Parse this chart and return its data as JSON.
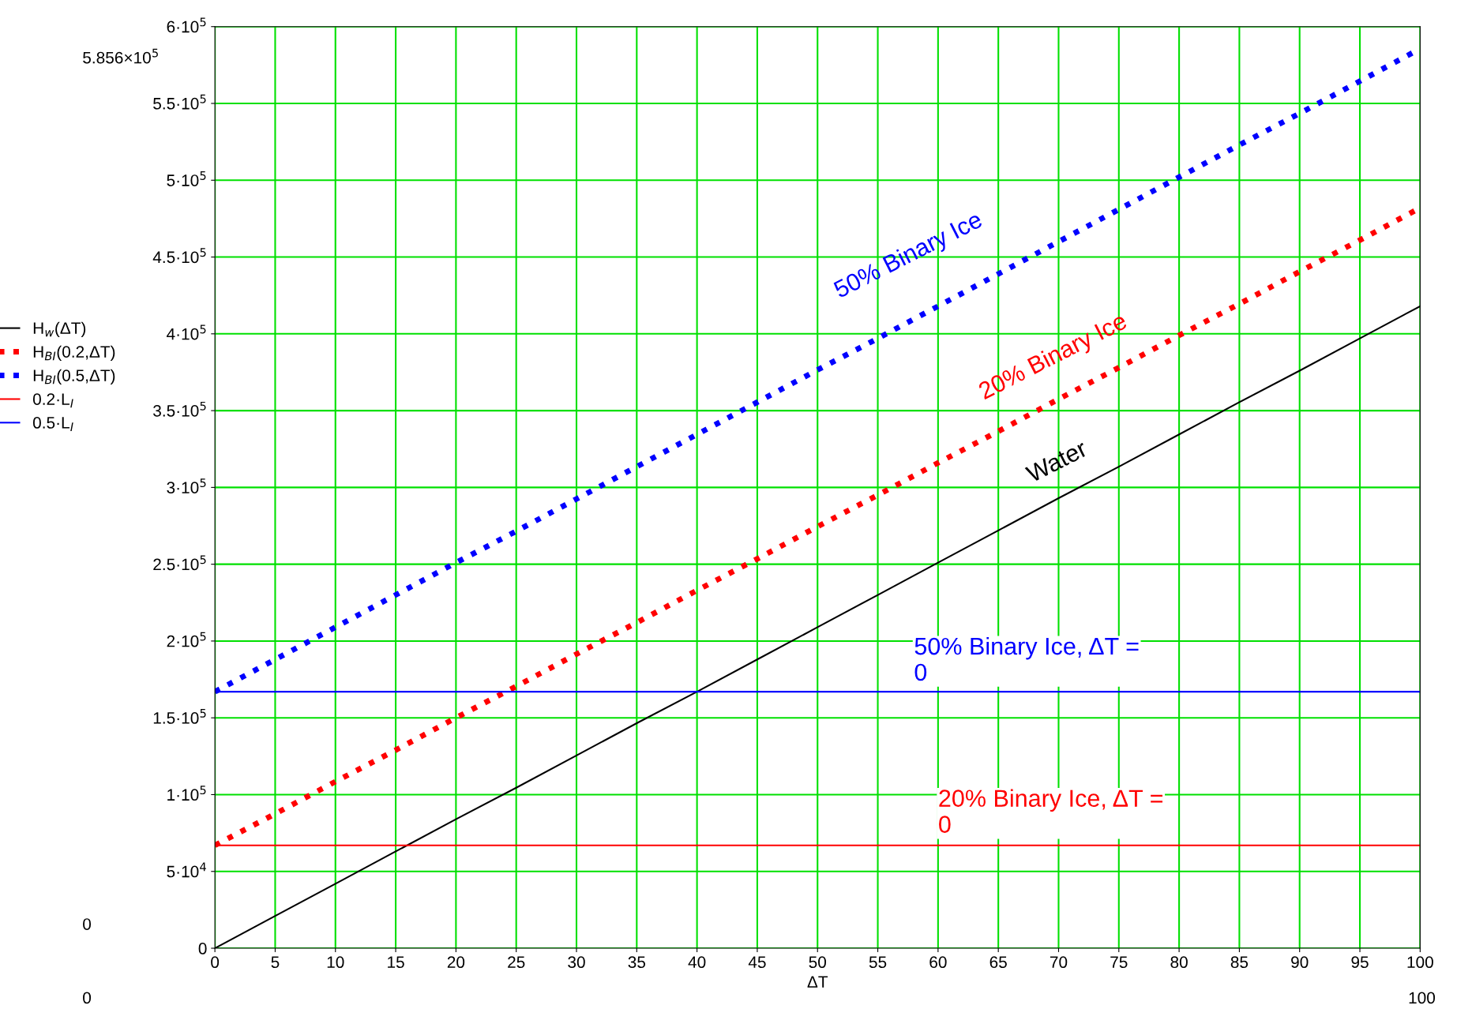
{
  "chart_data": {
    "type": "line",
    "xlabel": "ΔT",
    "xlim": [
      0,
      100
    ],
    "xticks": [
      0,
      5,
      10,
      15,
      20,
      25,
      30,
      35,
      40,
      45,
      50,
      55,
      60,
      65,
      70,
      75,
      80,
      85,
      90,
      95,
      100
    ],
    "ylim": [
      0,
      600000
    ],
    "yticks": [
      0,
      {
        "value": 50000,
        "label": "5·10$^{4}$"
      },
      {
        "value": 100000,
        "label": "1·10$^{5}$"
      },
      {
        "value": 150000,
        "label": "1.5·10$^{5}$"
      },
      {
        "value": 200000,
        "label": "2·10$^{5}$"
      },
      {
        "value": 250000,
        "label": "2.5·10$^{5}$"
      },
      {
        "value": 300000,
        "label": "3·10$^{5}$"
      },
      {
        "value": 350000,
        "label": "3.5·10$^{5}$"
      },
      {
        "value": 400000,
        "label": "4·10$^{5}$"
      },
      {
        "value": 450000,
        "label": "4.5·10$^{5}$"
      },
      {
        "value": 500000,
        "label": "5·10$^{5}$"
      },
      {
        "value": 550000,
        "label": "5.5·10$^{5}$"
      },
      {
        "value": 600000,
        "label": "6·10$^{5}$"
      }
    ],
    "grid": true,
    "legend": "left",
    "x": [
      0,
      5,
      10,
      15,
      20,
      25,
      30,
      35,
      40,
      45,
      50,
      55,
      60,
      65,
      70,
      75,
      80,
      85,
      90,
      95,
      100
    ],
    "series": [
      {
        "name": "H$_{w}$(ΔT)",
        "color": "#000000",
        "line_style": "solid",
        "values": [
          0,
          21000,
          42000,
          63000,
          84000,
          104500,
          125500,
          146500,
          167000,
          188000,
          209000,
          230000,
          251000,
          272000,
          293000,
          313500,
          334500,
          355500,
          376000,
          397000,
          418000
        ]
      },
      {
        "name": "H$_{BI}$(0.2,ΔT)",
        "color": "#ff0000",
        "line_style": "dotted",
        "values": [
          67000,
          87500,
          108500,
          129000,
          150000,
          170500,
          191500,
          212000,
          233000,
          253500,
          274500,
          295000,
          316000,
          336500,
          357500,
          378000,
          399000,
          419500,
          440500,
          461000,
          482000
        ]
      },
      {
        "name": "H$_{BI}$(0.5,ΔT)",
        "color": "#0000ff",
        "line_style": "dotted",
        "values": [
          167000,
          188000,
          209000,
          230000,
          251000,
          271500,
          292500,
          313500,
          334500,
          355500,
          376500,
          397000,
          418000,
          439000,
          460000,
          481000,
          502000,
          523000,
          543500,
          564500,
          585600
        ]
      }
    ],
    "ref_lines": [
      {
        "axis": "y",
        "value": 67000,
        "label": "0.2·L$_{I}$",
        "color": "#ff0000",
        "line_style": "solid"
      },
      {
        "axis": "y",
        "value": 167000,
        "label": "0.5·L$_{I}$",
        "color": "#0000ff",
        "line_style": "solid"
      }
    ],
    "annotations": [
      "50% Binary Ice",
      "20% Binary Ice",
      "Water",
      "50% Binary Ice, ΔT =\n0",
      "20% Binary Ice, ΔT =\n0",
      "5.856×10$^{5}$",
      "0",
      "0",
      "100"
    ]
  }
}
